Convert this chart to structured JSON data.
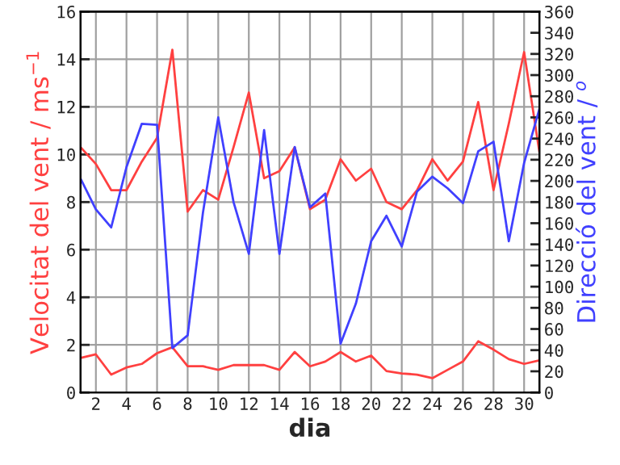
{
  "chart_data": {
    "type": "line",
    "xlabel": "dia",
    "ylabel": "Velocitat del vent / ms$^{−1}$",
    "y2label": "Direcció del vent / $^{o}$",
    "x": [
      1,
      2,
      3,
      4,
      5,
      6,
      7,
      8,
      9,
      10,
      11,
      12,
      13,
      14,
      15,
      16,
      17,
      18,
      19,
      20,
      21,
      22,
      23,
      24,
      25,
      26,
      27,
      28,
      29,
      30,
      31
    ],
    "series": [
      {
        "color": "#ff4040",
        "values": [
          10.3,
          9.6,
          8.5,
          8.5,
          9.7,
          10.7,
          14.4,
          7.6,
          8.5,
          8.1,
          10.3,
          12.6,
          9.0,
          9.3,
          10.3,
          7.7,
          8.1,
          9.8,
          8.9,
          9.4,
          8.0,
          7.7,
          8.5,
          9.8,
          8.9,
          9.7,
          12.2,
          8.5,
          11.3,
          14.3,
          10.1
        ]
      },
      {
        "color": "#ff4040",
        "values": [
          1.45,
          1.6,
          0.75,
          1.05,
          1.2,
          1.65,
          1.9,
          1.1,
          1.1,
          0.95,
          1.15,
          1.15,
          1.15,
          0.95,
          1.7,
          1.1,
          1.3,
          1.7,
          1.3,
          1.55,
          0.9,
          0.8,
          0.75,
          0.6,
          0.95,
          1.3,
          2.15,
          1.8,
          1.4,
          1.2,
          1.35
        ]
      },
      {
        "color": "#4040ff",
        "axis": "y2",
        "values": [
          202,
          173,
          156,
          213,
          254,
          253,
          42,
          54,
          170,
          260,
          180,
          131,
          248,
          131,
          232,
          175,
          188,
          46,
          84,
          143,
          167,
          138,
          190,
          204,
          193,
          179,
          228,
          237,
          143,
          217,
          268
        ]
      }
    ],
    "xlim": [
      1,
      31
    ],
    "xticks": [
      2,
      4,
      6,
      8,
      10,
      12,
      14,
      16,
      18,
      20,
      22,
      24,
      26,
      28,
      30
    ],
    "ylim": [
      0,
      16
    ],
    "yticks": [
      0,
      2,
      4,
      6,
      8,
      10,
      12,
      14,
      16
    ],
    "y2lim": [
      0,
      360
    ],
    "y2ticks": [
      0,
      20,
      40,
      60,
      80,
      100,
      120,
      140,
      160,
      180,
      200,
      220,
      240,
      260,
      280,
      300,
      320,
      340,
      360
    ],
    "grid": true,
    "legend": false
  }
}
